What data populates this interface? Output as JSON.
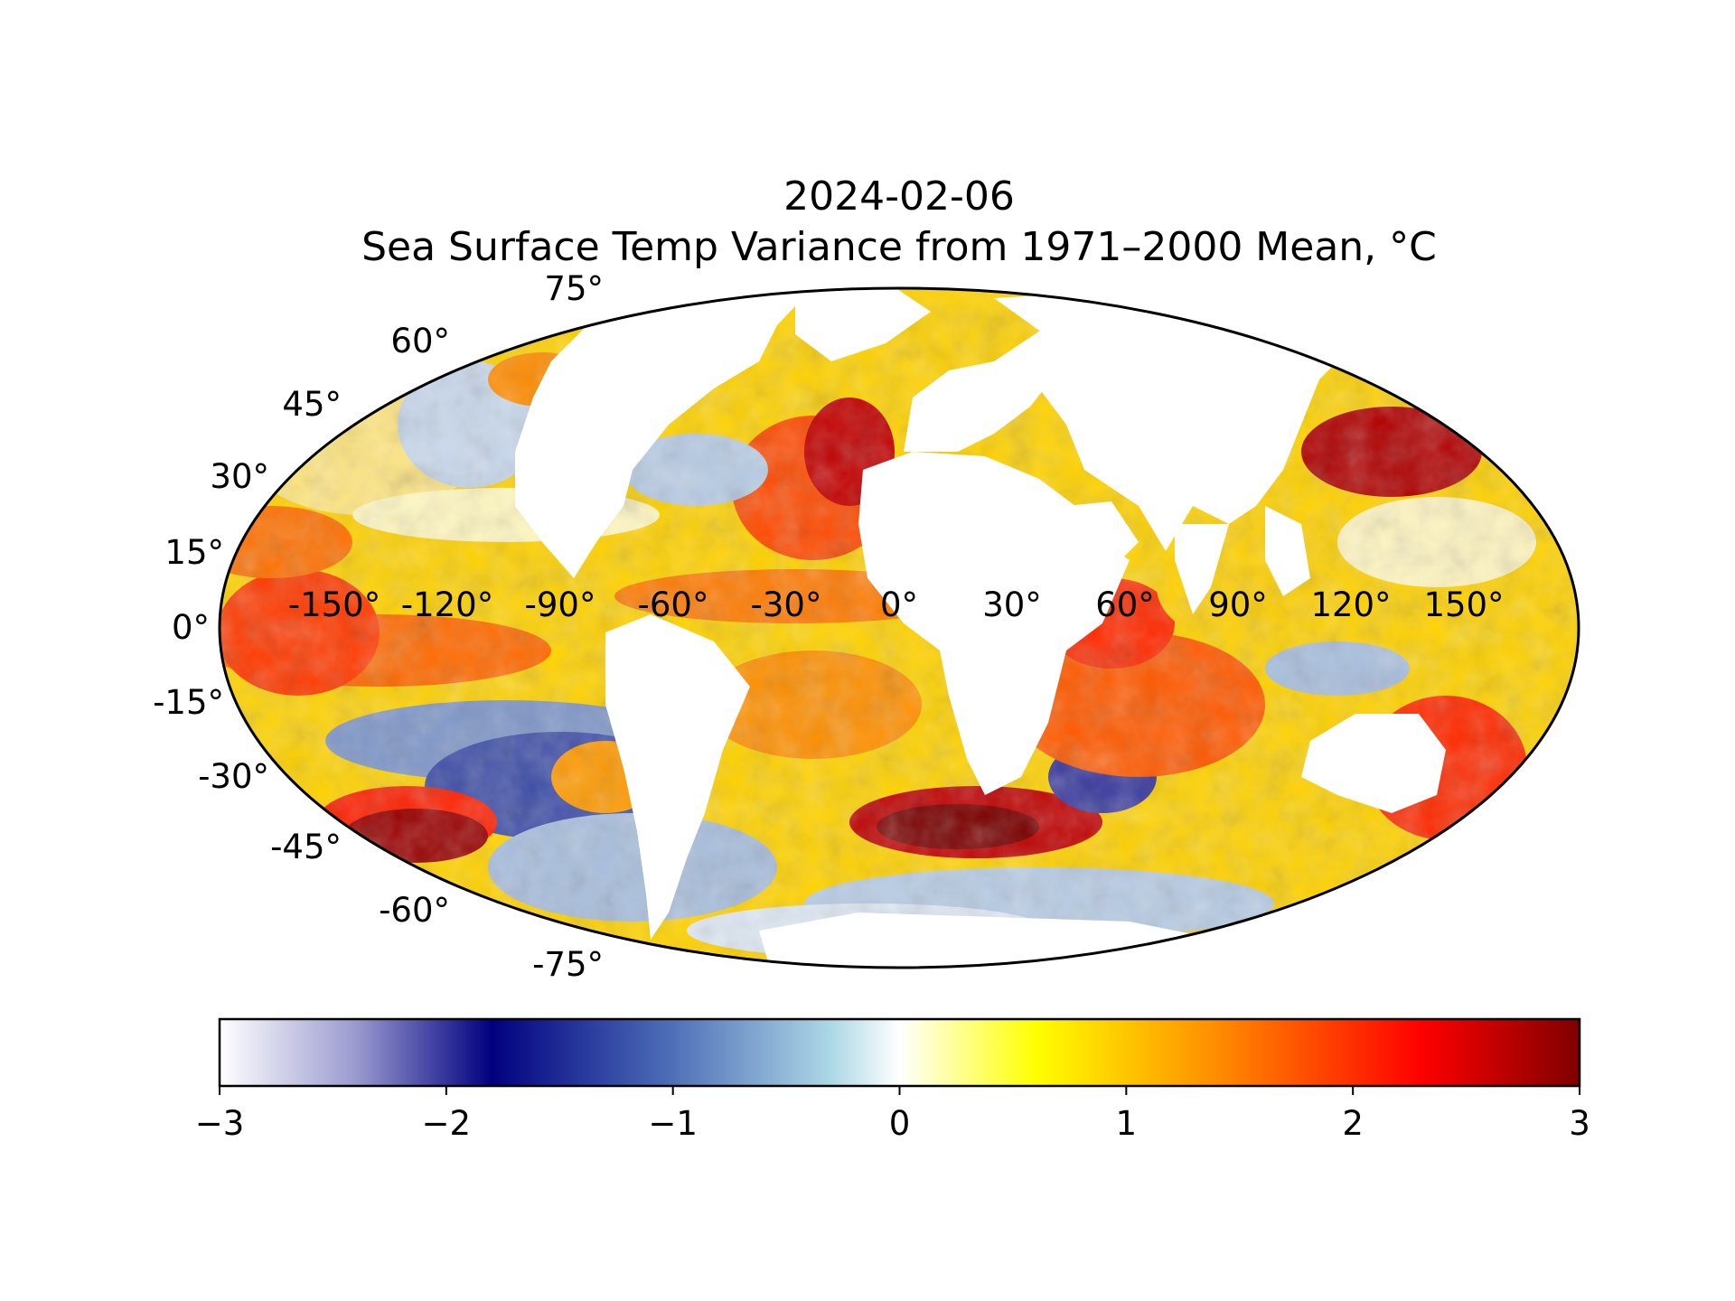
{
  "title": {
    "line1": "2024-02-06",
    "line2": "Sea Surface Temp Variance from 1971–2000 Mean, °C"
  },
  "map": {
    "projection": "Mollweide",
    "latitude_labels": [
      "75°",
      "60°",
      "45°",
      "30°",
      "15°",
      "0°",
      "-15°",
      "-30°",
      "-45°",
      "-60°",
      "-75°"
    ],
    "longitude_labels": [
      "-150°",
      "-120°",
      "-90°",
      "-60°",
      "-30°",
      "0°",
      "30°",
      "60°",
      "90°",
      "120°",
      "150°"
    ]
  },
  "colorbar": {
    "min": -3,
    "max": 3,
    "tick_labels": [
      "−3",
      "−2",
      "−1",
      "0",
      "1",
      "2",
      "3"
    ],
    "stops": [
      {
        "value": -3.0,
        "color": "#ffffff"
      },
      {
        "value": -2.4,
        "color": "#9a9ad0"
      },
      {
        "value": -1.8,
        "color": "#00007f"
      },
      {
        "value": -1.0,
        "color": "#4f70b8"
      },
      {
        "value": -0.3,
        "color": "#add8e6"
      },
      {
        "value": 0.0,
        "color": "#ffffff"
      },
      {
        "value": 0.6,
        "color": "#ffff00"
      },
      {
        "value": 1.4,
        "color": "#ff8c00"
      },
      {
        "value": 2.3,
        "color": "#ff0000"
      },
      {
        "value": 3.0,
        "color": "#800000"
      }
    ]
  }
}
